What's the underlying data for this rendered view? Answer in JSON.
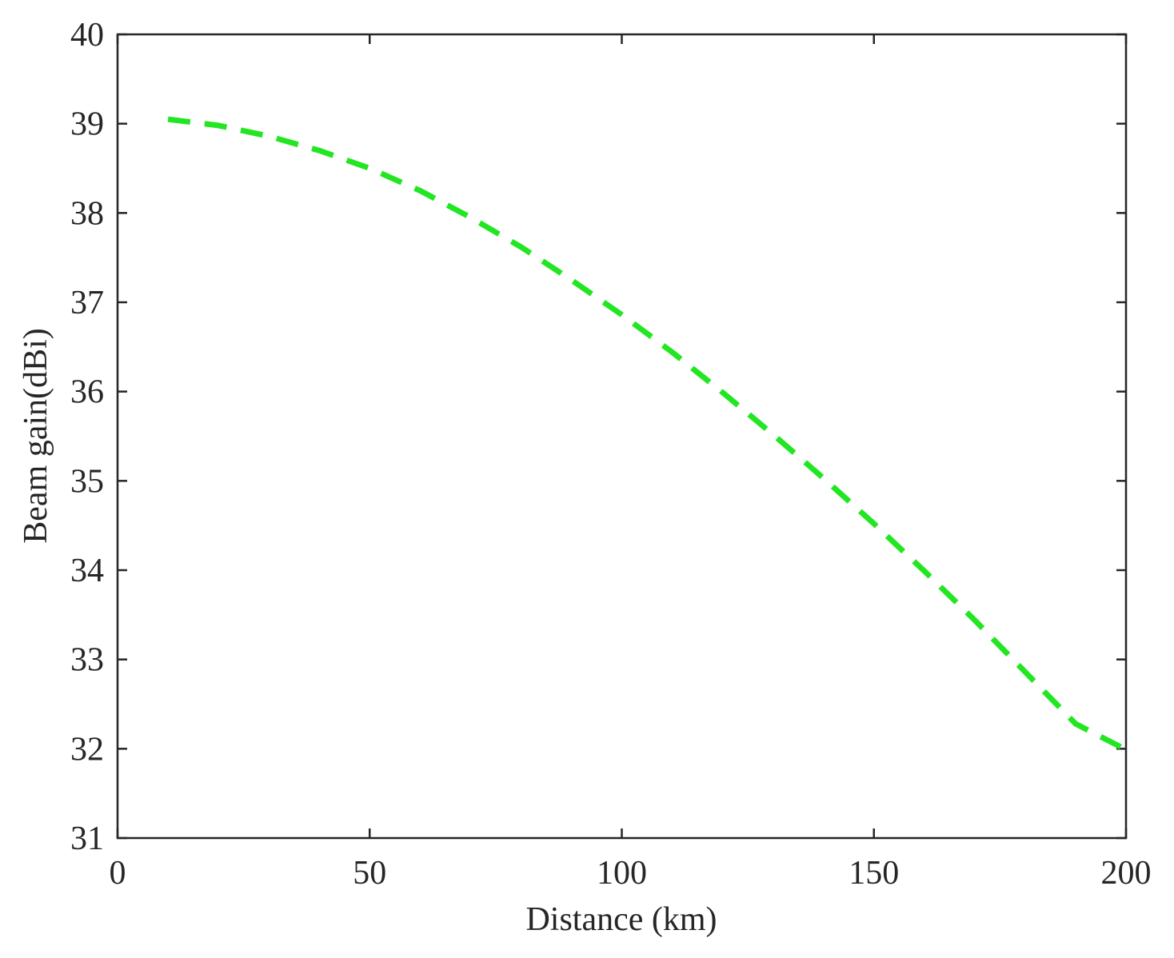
{
  "chart_data": {
    "type": "line",
    "title": "",
    "xlabel": "Distance (km)",
    "ylabel": "Beam gain(dBi)",
    "xlim": [
      0,
      200
    ],
    "ylim": [
      31,
      40
    ],
    "xticks": [
      "0",
      "50",
      "100",
      "150",
      "200"
    ],
    "yticks": [
      "31",
      "32",
      "33",
      "34",
      "35",
      "36",
      "37",
      "38",
      "39",
      "40"
    ],
    "grid": false,
    "legend": "none",
    "series": [
      {
        "color": "#22e622",
        "line_style": "dashed",
        "x": [
          10,
          20,
          30,
          40,
          50,
          60,
          70,
          80,
          90,
          100,
          110,
          120,
          130,
          140,
          150,
          160,
          170,
          180,
          190,
          200
        ],
        "y": [
          39.05,
          38.98,
          38.86,
          38.7,
          38.5,
          38.25,
          37.95,
          37.62,
          37.25,
          36.86,
          36.44,
          35.99,
          35.52,
          35.03,
          34.52,
          33.99,
          33.44,
          32.86,
          32.28,
          31.99
        ]
      }
    ]
  }
}
